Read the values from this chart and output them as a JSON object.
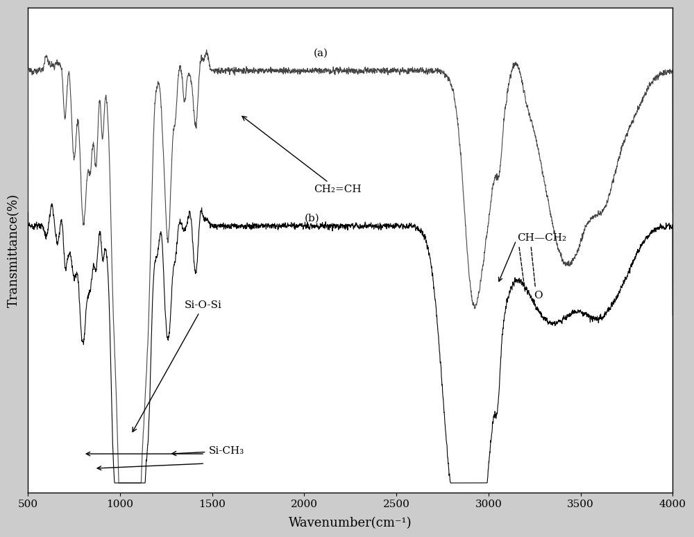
{
  "xlabel": "Wavenumber(cm⁻¹)",
  "ylabel": "Transmittance(%)",
  "xlim": [
    500,
    4000
  ],
  "ylim": [
    0,
    100
  ],
  "bg_color": "#cccccc",
  "plot_bg_color": "#ffffff",
  "line_color_a": "#444444",
  "line_color_b": "#000000",
  "label_a": "(a)",
  "label_b": "(b)",
  "annotation_ch2ch": "CH₂=CH",
  "annotation_siosi": "Si-O-Si",
  "annotation_sich3": "Si-CH₃",
  "annotation_epoxy_top": "CH—CH₂",
  "annotation_epoxy_o": "O",
  "xticks": [
    500,
    1000,
    1500,
    2000,
    2500,
    3000,
    3500,
    4000
  ]
}
